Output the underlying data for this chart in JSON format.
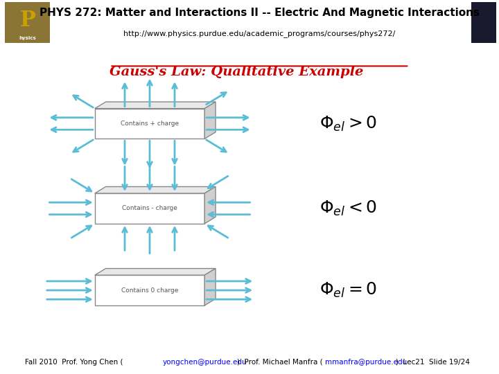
{
  "title": "PHYS 272: Matter and Interactions II -- Electric And Magnetic Interactions",
  "subtitle": "http://www.physics.purdue.edu/academic_programs/courses/phys272/",
  "slide_title": "Gauss's Law: Qualitative Example",
  "header_bg": "#c8d400",
  "footer_bg": "#a8d8e8",
  "body_bg": "#ffffff",
  "slide_title_color": "#cc0000",
  "arrow_color": "#5bbcd6",
  "box_color": "#888888",
  "box_label_color": "#555555",
  "box1_label": "Contains + charge",
  "box2_label": "Contains - charge",
  "box3_label": "Contains 0 charge",
  "eq1": "$\\Phi_{el} > 0$",
  "eq2": "$\\Phi_{el} < 0$",
  "eq3": "$\\Phi_{el} = 0$"
}
